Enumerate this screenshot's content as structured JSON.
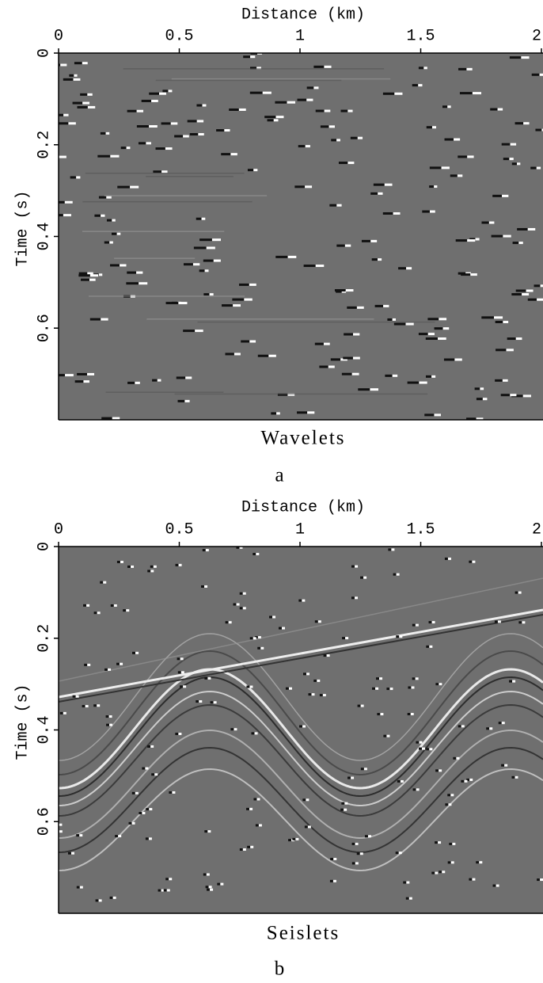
{
  "chart_data": [
    {
      "type": "image",
      "xlabel": "Distance (km)",
      "ylabel": "Time (s)",
      "caption": "Wavelets",
      "panel": "a",
      "xlim": [
        0,
        2
      ],
      "xticks": [
        0,
        0.5,
        1,
        1.5,
        2
      ],
      "ylim": [
        0,
        0.8
      ],
      "yticks": [
        0,
        0.2,
        0.4,
        0.6
      ]
    },
    {
      "type": "image",
      "xlabel": "Distance (km)",
      "ylabel": "Time (s)",
      "caption": "Seislets",
      "panel": "b",
      "xlim": [
        0,
        2
      ],
      "xticks": [
        0,
        0.5,
        1,
        1.5,
        2
      ],
      "ylim": [
        0,
        0.8
      ],
      "yticks": [
        0,
        0.2,
        0.4,
        0.6
      ]
    }
  ]
}
